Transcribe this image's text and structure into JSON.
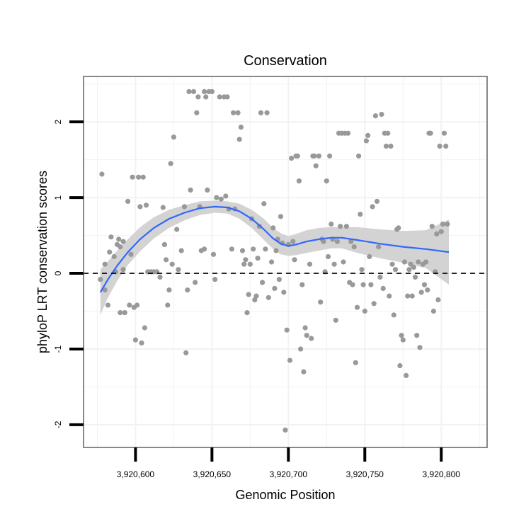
{
  "chart_data": {
    "type": "scatter",
    "title": "Conservation",
    "xlabel": "Genomic Position",
    "ylabel": "phyloP LRT conservation scores",
    "xlim": [
      3920566,
      3920830
    ],
    "ylim": [
      -2.3,
      2.6
    ],
    "x_ticks": [
      3920600,
      3920650,
      3920700,
      3920750,
      3920800
    ],
    "x_tick_labels": [
      "3,920,600",
      "3,920,650",
      "3,920,700",
      "3,920,750",
      "3,920,800"
    ],
    "y_ticks": [
      -2,
      -1,
      0,
      1,
      2
    ],
    "y_tick_labels": [
      "-2",
      "-1",
      "0",
      "1",
      "2"
    ],
    "grid": true,
    "reference_line": {
      "y": 0,
      "style": "dashed"
    },
    "colors": {
      "points": "#999999",
      "smooth_line": "#3366ff",
      "ribbon": "#d3d3d3",
      "panel_border": "#888888",
      "grid": "#f2f2f2"
    },
    "points": [
      [
        3920577,
        -0.08
      ],
      [
        3920578,
        1.31
      ],
      [
        3920580,
        0.12
      ],
      [
        3920580,
        -0.22
      ],
      [
        3920582,
        -0.42
      ],
      [
        3920583,
        0.28
      ],
      [
        3920584,
        0.48
      ],
      [
        3920586,
        0.22
      ],
      [
        3920587,
        0.02
      ],
      [
        3920588,
        0.38
      ],
      [
        3920589,
        0.45
      ],
      [
        3920590,
        0.35
      ],
      [
        3920590,
        -0.52
      ],
      [
        3920592,
        0.42
      ],
      [
        3920592,
        0.05
      ],
      [
        3920593,
        -0.52
      ],
      [
        3920595,
        0.95
      ],
      [
        3920596,
        -0.42
      ],
      [
        3920597,
        0.25
      ],
      [
        3920598,
        1.27
      ],
      [
        3920599,
        -0.45
      ],
      [
        3920600,
        -0.88
      ],
      [
        3920601,
        -0.42
      ],
      [
        3920602,
        1.27
      ],
      [
        3920603,
        0.88
      ],
      [
        3920604,
        -0.92
      ],
      [
        3920605,
        1.27
      ],
      [
        3920606,
        -0.72
      ],
      [
        3920607,
        0.9
      ],
      [
        3920608,
        0.02
      ],
      [
        3920610,
        0.02
      ],
      [
        3920612,
        0.02
      ],
      [
        3920614,
        0.02
      ],
      [
        3920616,
        -0.05
      ],
      [
        3920618,
        0.87
      ],
      [
        3920619,
        0.38
      ],
      [
        3920620,
        0.18
      ],
      [
        3920621,
        -0.42
      ],
      [
        3920622,
        -0.22
      ],
      [
        3920623,
        1.45
      ],
      [
        3920624,
        0.12
      ],
      [
        3920625,
        1.8
      ],
      [
        3920627,
        0.58
      ],
      [
        3920628,
        0.05
      ],
      [
        3920630,
        0.3
      ],
      [
        3920632,
        0.88
      ],
      [
        3920633,
        -1.05
      ],
      [
        3920634,
        -0.22
      ],
      [
        3920635,
        2.4
      ],
      [
        3920636,
        1.1
      ],
      [
        3920638,
        2.4
      ],
      [
        3920639,
        -0.12
      ],
      [
        3920640,
        2.12
      ],
      [
        3920641,
        2.33
      ],
      [
        3920642,
        0.88
      ],
      [
        3920643,
        0.3
      ],
      [
        3920645,
        2.4
      ],
      [
        3920645,
        0.32
      ],
      [
        3920646,
        2.33
      ],
      [
        3920647,
        1.1
      ],
      [
        3920648,
        2.4
      ],
      [
        3920650,
        2.4
      ],
      [
        3920651,
        0.25
      ],
      [
        3920652,
        -0.08
      ],
      [
        3920653,
        1.0
      ],
      [
        3920655,
        2.33
      ],
      [
        3920656,
        0.98
      ],
      [
        3920658,
        2.33
      ],
      [
        3920659,
        1.02
      ],
      [
        3920660,
        2.33
      ],
      [
        3920661,
        0.85
      ],
      [
        3920663,
        0.32
      ],
      [
        3920664,
        2.12
      ],
      [
        3920665,
        0.85
      ],
      [
        3920667,
        2.12
      ],
      [
        3920668,
        1.77
      ],
      [
        3920669,
        1.93
      ],
      [
        3920670,
        0.3
      ],
      [
        3920671,
        0.12
      ],
      [
        3920672,
        0.18
      ],
      [
        3920673,
        -0.52
      ],
      [
        3920674,
        -0.28
      ],
      [
        3920675,
        0.12
      ],
      [
        3920676,
        0.72
      ],
      [
        3920677,
        0.32
      ],
      [
        3920678,
        -0.35
      ],
      [
        3920679,
        -0.3
      ],
      [
        3920680,
        0.2
      ],
      [
        3920681,
        0.62
      ],
      [
        3920682,
        2.12
      ],
      [
        3920683,
        -0.12
      ],
      [
        3920684,
        0.92
      ],
      [
        3920685,
        0.32
      ],
      [
        3920686,
        2.12
      ],
      [
        3920687,
        -0.32
      ],
      [
        3920689,
        0.15
      ],
      [
        3920690,
        0.6
      ],
      [
        3920691,
        -0.2
      ],
      [
        3920692,
        0.3
      ],
      [
        3920693,
        0.45
      ],
      [
        3920694,
        -0.08
      ],
      [
        3920695,
        0.75
      ],
      [
        3920696,
        0.4
      ],
      [
        3920697,
        -0.25
      ],
      [
        3920698,
        -2.07
      ],
      [
        3920699,
        -0.75
      ],
      [
        3920700,
        0.38
      ],
      [
        3920701,
        -1.15
      ],
      [
        3920702,
        1.52
      ],
      [
        3920703,
        0.42
      ],
      [
        3920704,
        0.18
      ],
      [
        3920705,
        1.55
      ],
      [
        3920706,
        1.55
      ],
      [
        3920707,
        1.22
      ],
      [
        3920708,
        -1.0
      ],
      [
        3920709,
        -0.15
      ],
      [
        3920710,
        -1.3
      ],
      [
        3920711,
        -0.72
      ],
      [
        3920712,
        -0.82
      ],
      [
        3920714,
        0.12
      ],
      [
        3920715,
        -0.86
      ],
      [
        3920716,
        1.55
      ],
      [
        3920717,
        1.55
      ],
      [
        3920718,
        1.42
      ],
      [
        3920720,
        1.55
      ],
      [
        3920721,
        -0.38
      ],
      [
        3920722,
        0.45
      ],
      [
        3920723,
        0.42
      ],
      [
        3920724,
        0.02
      ],
      [
        3920725,
        1.22
      ],
      [
        3920726,
        0.22
      ],
      [
        3920727,
        1.55
      ],
      [
        3920728,
        0.65
      ],
      [
        3920729,
        0.45
      ],
      [
        3920730,
        0.12
      ],
      [
        3920731,
        -0.62
      ],
      [
        3920732,
        0.42
      ],
      [
        3920733,
        1.85
      ],
      [
        3920734,
        0.62
      ],
      [
        3920735,
        1.85
      ],
      [
        3920736,
        0.15
      ],
      [
        3920737,
        1.85
      ],
      [
        3920738,
        0.62
      ],
      [
        3920739,
        1.85
      ],
      [
        3920740,
        -0.12
      ],
      [
        3920741,
        0.42
      ],
      [
        3920742,
        -0.15
      ],
      [
        3920743,
        0.35
      ],
      [
        3920744,
        -1.18
      ],
      [
        3920745,
        -0.45
      ],
      [
        3920746,
        1.55
      ],
      [
        3920747,
        0.78
      ],
      [
        3920748,
        0.05
      ],
      [
        3920749,
        -0.15
      ],
      [
        3920750,
        -0.5
      ],
      [
        3920751,
        1.75
      ],
      [
        3920752,
        1.82
      ],
      [
        3920753,
        0.22
      ],
      [
        3920754,
        -0.15
      ],
      [
        3920755,
        0.88
      ],
      [
        3920756,
        -0.4
      ],
      [
        3920757,
        2.08
      ],
      [
        3920758,
        0.95
      ],
      [
        3920759,
        0.35
      ],
      [
        3920760,
        -0.05
      ],
      [
        3920761,
        2.1
      ],
      [
        3920762,
        -0.2
      ],
      [
        3920763,
        1.85
      ],
      [
        3920764,
        1.68
      ],
      [
        3920765,
        1.85
      ],
      [
        3920766,
        -0.3
      ],
      [
        3920767,
        1.68
      ],
      [
        3920768,
        0.12
      ],
      [
        3920769,
        -0.55
      ],
      [
        3920770,
        0.05
      ],
      [
        3920771,
        0.58
      ],
      [
        3920772,
        0.6
      ],
      [
        3920773,
        -1.22
      ],
      [
        3920774,
        -0.82
      ],
      [
        3920775,
        -0.88
      ],
      [
        3920776,
        0.15
      ],
      [
        3920777,
        -1.35
      ],
      [
        3920778,
        -0.3
      ],
      [
        3920779,
        0.05
      ],
      [
        3920780,
        0.12
      ],
      [
        3920781,
        -0.3
      ],
      [
        3920782,
        0.08
      ],
      [
        3920783,
        -0.05
      ],
      [
        3920784,
        -0.82
      ],
      [
        3920785,
        0.15
      ],
      [
        3920786,
        -0.98
      ],
      [
        3920787,
        -0.25
      ],
      [
        3920788,
        0.12
      ],
      [
        3920789,
        -0.15
      ],
      [
        3920790,
        0.15
      ],
      [
        3920791,
        -0.22
      ],
      [
        3920792,
        1.85
      ],
      [
        3920793,
        1.85
      ],
      [
        3920794,
        0.62
      ],
      [
        3920795,
        -0.5
      ],
      [
        3920796,
        0.02
      ],
      [
        3920797,
        0.52
      ],
      [
        3920798,
        -0.35
      ],
      [
        3920799,
        1.68
      ],
      [
        3920800,
        0.55
      ],
      [
        3920801,
        0.65
      ],
      [
        3920802,
        1.85
      ],
      [
        3920803,
        1.68
      ],
      [
        3920804,
        0.65
      ]
    ],
    "smooth_line": {
      "x": [
        3920577,
        3920582,
        3920588,
        3920595,
        3920603,
        3920612,
        3920622,
        3920632,
        3920642,
        3920652,
        3920660,
        3920668,
        3920676,
        3920684,
        3920690,
        3920695,
        3920700,
        3920705,
        3920712,
        3920720,
        3920728,
        3920735,
        3920745,
        3920760,
        3920775,
        3920790,
        3920805
      ],
      "y": [
        -0.25,
        -0.08,
        0.1,
        0.28,
        0.45,
        0.6,
        0.72,
        0.8,
        0.86,
        0.88,
        0.87,
        0.82,
        0.72,
        0.58,
        0.46,
        0.39,
        0.36,
        0.38,
        0.42,
        0.45,
        0.47,
        0.47,
        0.44,
        0.39,
        0.35,
        0.32,
        0.28
      ],
      "lower": [
        -0.55,
        -0.32,
        -0.1,
        0.11,
        0.29,
        0.46,
        0.6,
        0.7,
        0.77,
        0.8,
        0.79,
        0.72,
        0.6,
        0.44,
        0.32,
        0.25,
        0.23,
        0.24,
        0.27,
        0.3,
        0.33,
        0.33,
        0.27,
        0.2,
        0.14,
        0.07,
        -0.15
      ],
      "upper": [
        0.05,
        0.16,
        0.3,
        0.45,
        0.61,
        0.74,
        0.84,
        0.9,
        0.95,
        0.96,
        0.95,
        0.92,
        0.84,
        0.72,
        0.6,
        0.53,
        0.49,
        0.52,
        0.57,
        0.6,
        0.61,
        0.61,
        0.61,
        0.58,
        0.56,
        0.57,
        0.71
      ]
    }
  }
}
